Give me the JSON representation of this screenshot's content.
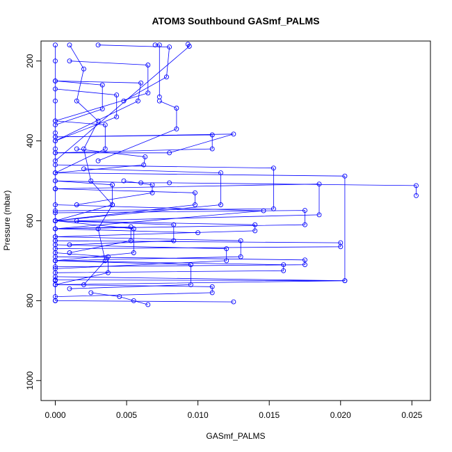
{
  "chart_data": {
    "type": "line",
    "title": "ATOM3 Southbound GASmf_PALMS",
    "xlabel": "GASmf_PALMS",
    "ylabel": "Pressure (mbar)",
    "xlim": [
      -0.001,
      0.0263
    ],
    "ylim": [
      1050,
      150
    ],
    "y_reversed": true,
    "x_ticks": [
      0.0,
      0.005,
      0.01,
      0.015,
      0.02,
      0.025
    ],
    "x_tick_labels": [
      "0.000",
      "0.005",
      "0.010",
      "0.015",
      "0.020",
      "0.025"
    ],
    "y_ticks": [
      200,
      400,
      600,
      800,
      1000
    ],
    "y_tick_labels": [
      "200",
      "400",
      "600",
      "800",
      "1000"
    ],
    "grid": false,
    "series_color": "#0000ff",
    "marker": "open-circle",
    "series": [
      {
        "x": [
          0.0,
          0.0,
          0.0,
          0.0,
          0.0,
          0.0,
          0.0,
          0.0,
          0.0,
          0.0,
          0.0,
          0.0
        ],
        "y": [
          160,
          200,
          250,
          300,
          380,
          420,
          520,
          600,
          650,
          700,
          750,
          800
        ]
      },
      {
        "x": [
          0.001,
          0.002,
          0.0015,
          0.003,
          0.002,
          0.0025,
          0.004,
          0.003,
          0.0035,
          0.002
        ],
        "y": [
          160,
          220,
          300,
          350,
          420,
          500,
          560,
          620,
          700,
          760
        ]
      },
      {
        "x": [
          0.0,
          0.006,
          0.008,
          0.0253,
          0.0253
        ],
        "y": [
          500,
          505,
          505,
          512,
          537
        ]
      },
      {
        "x": [
          0.0,
          0.0185,
          0.0185,
          0.0015
        ],
        "y": [
          520,
          508,
          585,
          600
        ]
      },
      {
        "x": [
          0.0,
          0.0203,
          0.0203,
          0.0
        ],
        "y": [
          480,
          488,
          750,
          760
        ]
      },
      {
        "x": [
          0.0,
          0.0153,
          0.0153,
          0.0
        ],
        "y": [
          460,
          468,
          570,
          575
        ]
      },
      {
        "x": [
          0.0,
          0.011,
          0.011,
          0.0
        ],
        "y": [
          390,
          385,
          420,
          430
        ]
      },
      {
        "x": [
          0.0,
          0.0125,
          0.008,
          0.0
        ],
        "y": [
          390,
          383,
          430,
          430
        ]
      },
      {
        "x": [
          0.0,
          0.0175,
          0.0175,
          0.0
        ],
        "y": [
          580,
          574,
          610,
          620
        ]
      },
      {
        "x": [
          0.0,
          0.02,
          0.02,
          0.0
        ],
        "y": [
          650,
          655,
          665,
          670
        ]
      },
      {
        "x": [
          0.0,
          0.0175,
          0.0175,
          0.0
        ],
        "y": [
          690,
          698,
          710,
          715
        ]
      },
      {
        "x": [
          0.0,
          0.016,
          0.016,
          0.0
        ],
        "y": [
          700,
          710,
          725,
          730
        ]
      },
      {
        "x": [
          0.0,
          0.0203,
          0.0
        ],
        "y": [
          740,
          750,
          748
        ]
      },
      {
        "x": [
          0.003,
          0.008,
          0.0078,
          0.0048
        ],
        "y": [
          160,
          165,
          240,
          300
        ]
      },
      {
        "x": [
          0.007,
          0.0073,
          0.0073
        ],
        "y": [
          160,
          160,
          290
        ]
      },
      {
        "x": [
          0.0093,
          0.0094,
          0.0
        ],
        "y": [
          158,
          163,
          450
        ]
      },
      {
        "x": [
          0.0073,
          0.0085,
          0.0085,
          0.003
        ],
        "y": [
          300,
          318,
          370,
          450
        ]
      },
      {
        "x": [
          0.0048,
          0.0068,
          0.0068,
          0.0015
        ],
        "y": [
          500,
          510,
          530,
          560
        ]
      },
      {
        "x": [
          0.0,
          0.014,
          0.014,
          0.0
        ],
        "y": [
          600,
          610,
          625,
          640
        ]
      },
      {
        "x": [
          0.0,
          0.0146,
          0.0,
          0.01
        ],
        "y": [
          560,
          575,
          620,
          630
        ]
      },
      {
        "x": [
          0.002,
          0.0116,
          0.0116,
          0.0
        ],
        "y": [
          470,
          480,
          560,
          600
        ]
      },
      {
        "x": [
          0.0,
          0.0098,
          0.0098,
          0.0
        ],
        "y": [
          520,
          530,
          560,
          600
        ]
      },
      {
        "x": [
          0.0,
          0.013,
          0.013,
          0.0
        ],
        "y": [
          640,
          650,
          690,
          700
        ]
      },
      {
        "x": [
          0.0,
          0.012,
          0.012,
          0.0
        ],
        "y": [
          660,
          670,
          700,
          720
        ]
      },
      {
        "x": [
          0.0,
          0.0095,
          0.0095,
          0.001
        ],
        "y": [
          700,
          710,
          760,
          770
        ]
      },
      {
        "x": [
          0.0,
          0.0125,
          0.0
        ],
        "y": [
          800,
          803,
          800
        ]
      },
      {
        "x": [
          0.0025,
          0.0045,
          0.0055,
          0.0065
        ],
        "y": [
          780,
          790,
          800,
          810
        ]
      },
      {
        "x": [
          0.0,
          0.011,
          0.011,
          0.0
        ],
        "y": [
          760,
          765,
          780,
          790
        ]
      },
      {
        "x": [
          0.0,
          0.0083,
          0.0083,
          0.001
        ],
        "y": [
          600,
          610,
          650,
          660
        ]
      },
      {
        "x": [
          0.0,
          0.0053,
          0.0053,
          0.001
        ],
        "y": [
          620,
          615,
          650,
          680
        ]
      },
      {
        "x": [
          0.0,
          0.0043,
          0.0043,
          0.0
        ],
        "y": [
          270,
          285,
          340,
          400
        ]
      },
      {
        "x": [
          0.001,
          0.0065,
          0.0065,
          0.0
        ],
        "y": [
          200,
          210,
          280,
          350
        ]
      },
      {
        "x": [
          0.0015,
          0.0063,
          0.0062,
          0.0
        ],
        "y": [
          420,
          440,
          460,
          480
        ]
      },
      {
        "x": [
          0.0,
          0.006,
          0.0058,
          0.0
        ],
        "y": [
          250,
          255,
          300,
          400
        ]
      },
      {
        "x": [
          0.0,
          0.0033,
          0.0033,
          0.0
        ],
        "y": [
          250,
          260,
          320,
          360
        ]
      },
      {
        "x": [
          0.0,
          0.0035,
          0.0035,
          0.0
        ],
        "y": [
          350,
          360,
          420,
          480
        ]
      },
      {
        "x": [
          0.0,
          0.004,
          0.004,
          0.0
        ],
        "y": [
          500,
          510,
          560,
          600
        ]
      },
      {
        "x": [
          0.0,
          0.0055,
          0.0055,
          0.0
        ],
        "y": [
          600,
          620,
          680,
          700
        ]
      },
      {
        "x": [
          0.0,
          0.0037,
          0.0037,
          0.0
        ],
        "y": [
          680,
          690,
          730,
          760
        ]
      }
    ]
  }
}
